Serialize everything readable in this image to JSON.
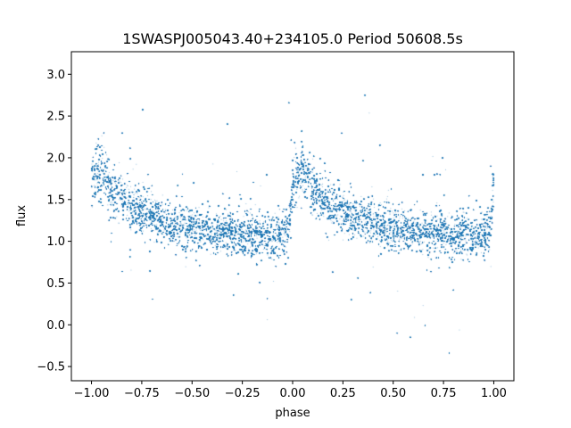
{
  "chart_data": {
    "type": "scatter",
    "title": "1SWASPJ005043.40+234105.0 Period 50608.5s",
    "xlabel": "phase",
    "ylabel": "flux",
    "xlim": [
      -1.1,
      1.1
    ],
    "ylim": [
      -0.67,
      3.27
    ],
    "x_ticks": [
      -1.0,
      -0.75,
      -0.5,
      -0.25,
      0.0,
      0.25,
      0.5,
      0.75,
      1.0
    ],
    "x_tick_labels": [
      "−1.00",
      "−0.75",
      "−0.50",
      "−0.25",
      "0.00",
      "0.25",
      "0.50",
      "0.75",
      "1.00"
    ],
    "y_ticks": [
      -0.5,
      0.0,
      0.5,
      1.0,
      1.5,
      2.0,
      2.5,
      3.0
    ],
    "y_tick_labels": [
      "−0.5",
      "0.0",
      "0.5",
      "1.0",
      "1.5",
      "2.0",
      "2.5",
      "3.0"
    ],
    "grid": false,
    "marker_color": "#1f77b4",
    "series": [
      {
        "phase_range": [
          -1.0,
          1.0
        ],
        "point_count": 60000,
        "profile": {
          "phase": [
            -1.0,
            -0.95,
            -0.9,
            -0.8,
            -0.7,
            -0.6,
            -0.5,
            -0.4,
            -0.3,
            -0.2,
            -0.1,
            -0.02,
            0.0,
            0.05,
            0.1,
            0.2,
            0.3,
            0.4,
            0.5,
            0.6,
            0.7,
            0.8,
            0.9,
            0.98,
            1.0
          ],
          "flux": [
            1.75,
            1.85,
            1.6,
            1.42,
            1.3,
            1.22,
            1.15,
            1.12,
            1.1,
            1.08,
            1.05,
            1.1,
            1.75,
            1.85,
            1.6,
            1.42,
            1.3,
            1.22,
            1.15,
            1.12,
            1.1,
            1.08,
            1.05,
            1.1,
            1.75
          ]
        }
      }
    ]
  }
}
